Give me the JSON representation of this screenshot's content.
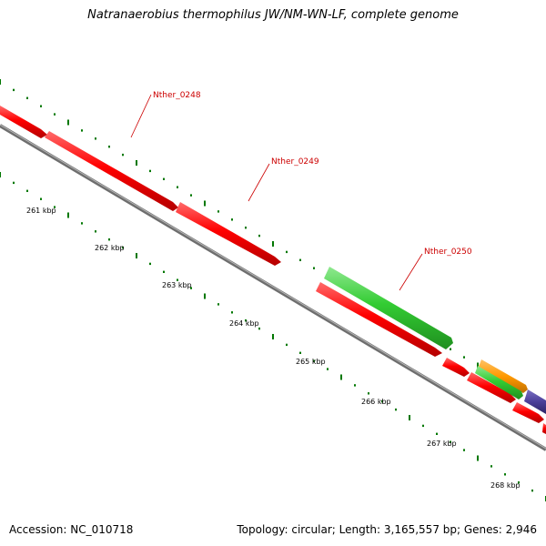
{
  "title": "Natranaerobius thermophilus JW/NM-WN-LF, complete genome",
  "footer": {
    "accession": "Accession: NC_010718",
    "topology": "Topology: circular; Length: 3,165,557 bp; Genes: 2,946"
  },
  "colors": {
    "forward_gene": "#ff0000",
    "reverse_gene": "#33cc33",
    "backbone": "#808080",
    "tick": "#007700",
    "label": "#cc0000",
    "orange_gene": "#ff9900",
    "purple_gene": "#4b3f99"
  },
  "kbp_ticks": [
    {
      "label": "261 kbp"
    },
    {
      "label": "262 kbp"
    },
    {
      "label": "263 kbp"
    },
    {
      "label": "264 kbp"
    },
    {
      "label": "265 kbp"
    },
    {
      "label": "266 kbp"
    },
    {
      "label": "267 kbp"
    },
    {
      "label": "268 kbp"
    }
  ],
  "gene_labels": [
    {
      "name": "Nther_0248"
    },
    {
      "name": "Nther_0249"
    },
    {
      "name": "Nther_0250"
    }
  ]
}
